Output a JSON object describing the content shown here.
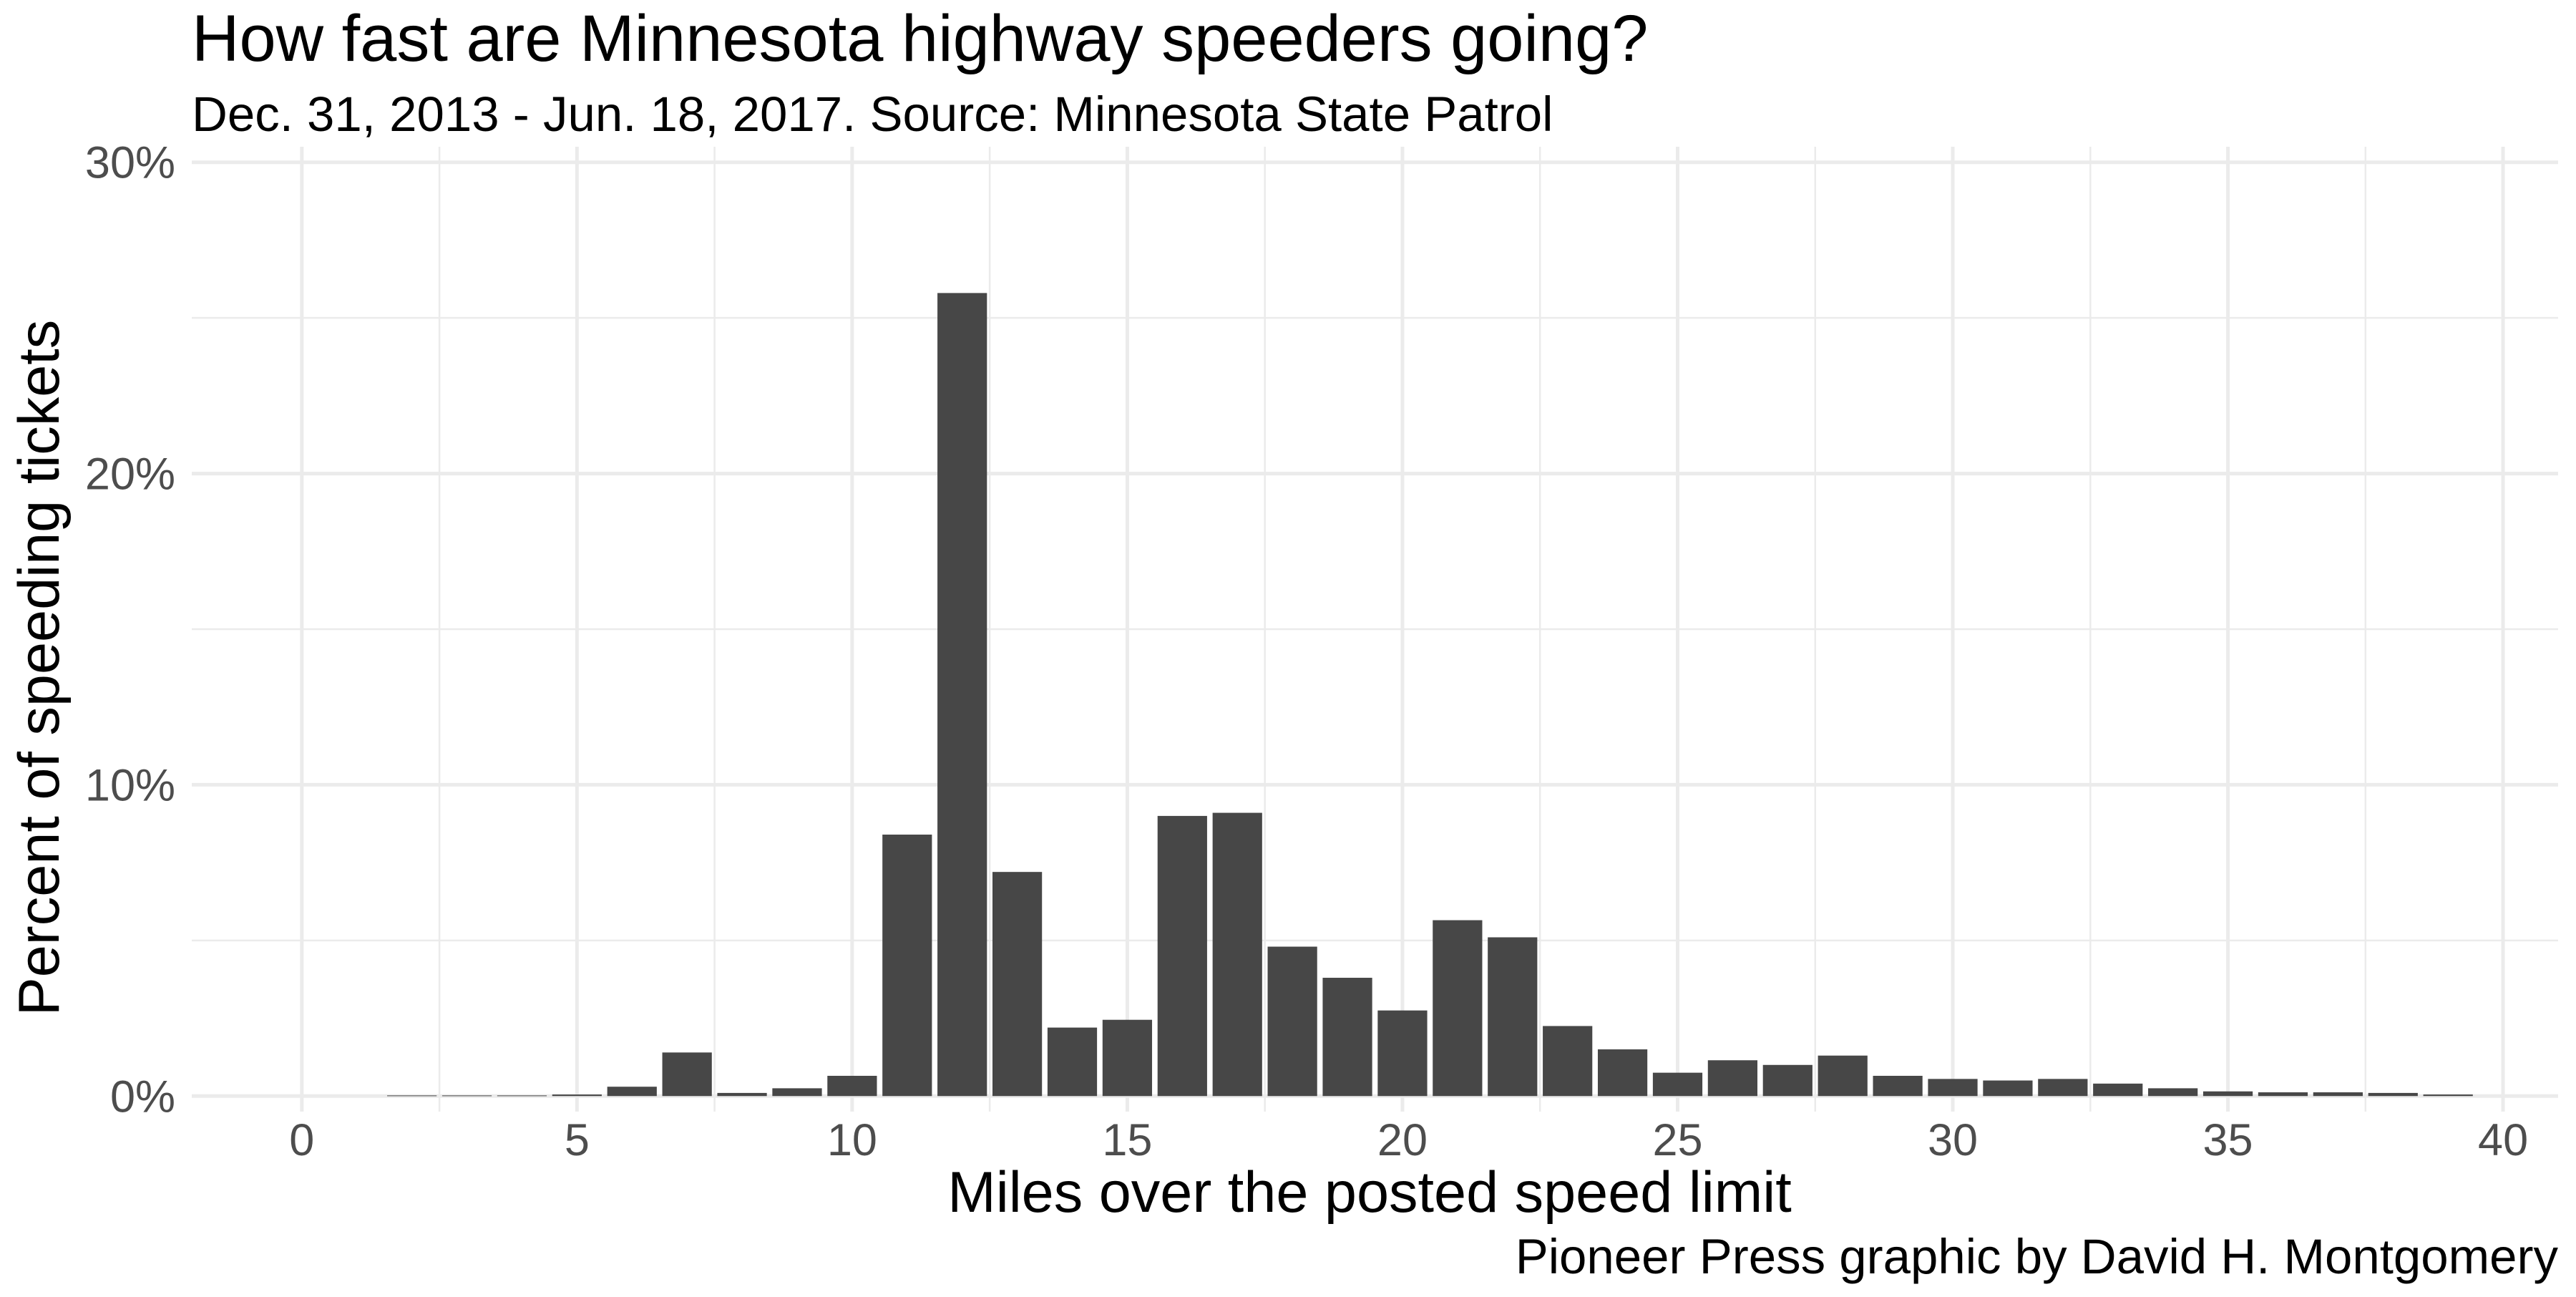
{
  "chart_data": {
    "type": "bar",
    "title": "How fast are Minnesota highway speeders going?",
    "subtitle": "Dec. 31, 2013 - Jun. 18, 2017. Source: Minnesota State Patrol",
    "caption": "Pioneer Press graphic by David H. Montgomery",
    "xlabel": "Miles over the posted speed limit",
    "ylabel": "Percent of speeding tickets",
    "xlim": [
      -2,
      41
    ],
    "ylim": [
      -0.5,
      30.5
    ],
    "x_ticks": [
      0,
      5,
      10,
      15,
      20,
      25,
      30,
      35,
      40
    ],
    "x_tick_labels": [
      "0",
      "5",
      "10",
      "15",
      "20",
      "25",
      "30",
      "35",
      "40"
    ],
    "y_ticks": [
      0,
      10,
      20,
      30
    ],
    "y_tick_labels": [
      "0%",
      "10%",
      "20%",
      "30%"
    ],
    "grid": true,
    "x": [
      2,
      3,
      4,
      5,
      6,
      7,
      8,
      9,
      10,
      11,
      12,
      13,
      14,
      15,
      16,
      17,
      18,
      19,
      20,
      21,
      22,
      23,
      24,
      25,
      26,
      27,
      28,
      29,
      30,
      31,
      32,
      33,
      34,
      35,
      36,
      37,
      38,
      39
    ],
    "values": [
      0.02,
      0.02,
      0.02,
      0.05,
      0.3,
      1.4,
      0.1,
      0.25,
      0.65,
      8.4,
      25.8,
      7.2,
      2.2,
      2.45,
      9.0,
      9.1,
      4.8,
      3.8,
      2.75,
      5.65,
      5.1,
      2.25,
      1.5,
      0.75,
      1.15,
      1.0,
      1.3,
      0.65,
      0.55,
      0.5,
      0.55,
      0.4,
      0.25,
      0.15,
      0.12,
      0.12,
      0.1,
      0.05
    ]
  }
}
